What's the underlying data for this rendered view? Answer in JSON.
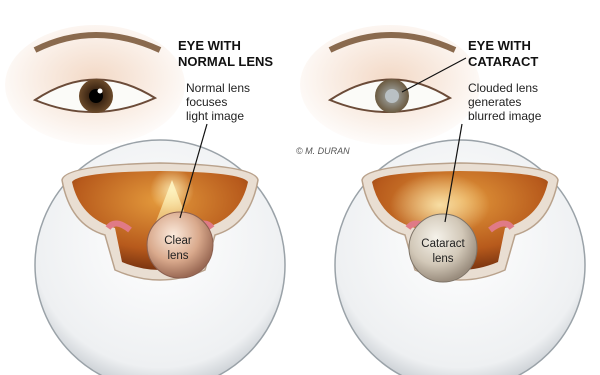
{
  "panels": [
    {
      "title_lines": [
        "EYE WITH",
        "NORMAL LENS"
      ],
      "caption_lines": [
        "Normal lens",
        "focuses",
        "light image"
      ],
      "lens_label_lines": [
        "Clear",
        "lens"
      ]
    },
    {
      "title_lines": [
        "EYE WITH",
        "CATARACT"
      ],
      "caption_lines": [
        "Clouded lens",
        "generates",
        "blurred image"
      ],
      "lens_label_lines": [
        "Cataract",
        "lens"
      ]
    }
  ],
  "credit": "© M. DURAN"
}
